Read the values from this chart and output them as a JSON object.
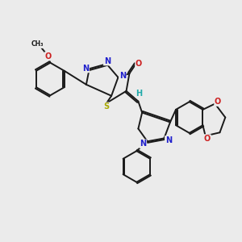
{
  "bg": "#ebebeb",
  "bond_color": "#1a1a1a",
  "lw": 1.4,
  "atom_colors": {
    "N": "#2020cc",
    "O": "#cc2020",
    "S": "#aaaa00",
    "H": "#20aaaa",
    "C": "#1a1a1a"
  },
  "fs": 7.0
}
